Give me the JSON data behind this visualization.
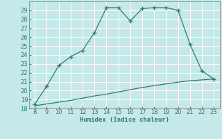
{
  "x": [
    8,
    9,
    10,
    11,
    12,
    13,
    14,
    15,
    16,
    17,
    18,
    19,
    20,
    21,
    22,
    23
  ],
  "y_main": [
    18.5,
    20.5,
    22.8,
    23.8,
    24.5,
    26.5,
    29.3,
    29.3,
    27.8,
    29.2,
    29.3,
    29.3,
    29.0,
    25.2,
    22.2,
    21.3
  ],
  "y_secondary": [
    18.3,
    18.5,
    18.7,
    18.9,
    19.15,
    19.4,
    19.6,
    19.85,
    20.1,
    20.35,
    20.55,
    20.75,
    20.95,
    21.1,
    21.2,
    21.3
  ],
  "line_color": "#2d7d6e",
  "background_color": "#c5e8e8",
  "grid_color": "#aacfcf",
  "xlabel": "Humidex (Indice chaleur)",
  "ylim": [
    18,
    30
  ],
  "xlim": [
    7.5,
    23.5
  ],
  "yticks": [
    18,
    19,
    20,
    21,
    22,
    23,
    24,
    25,
    26,
    27,
    28,
    29
  ],
  "xticks": [
    8,
    9,
    10,
    11,
    12,
    13,
    14,
    15,
    16,
    17,
    18,
    19,
    20,
    21,
    22,
    23
  ],
  "marker": "+",
  "markersize": 4,
  "linewidth": 0.9,
  "fontsize_axis": 6,
  "fontsize_label": 6.5
}
